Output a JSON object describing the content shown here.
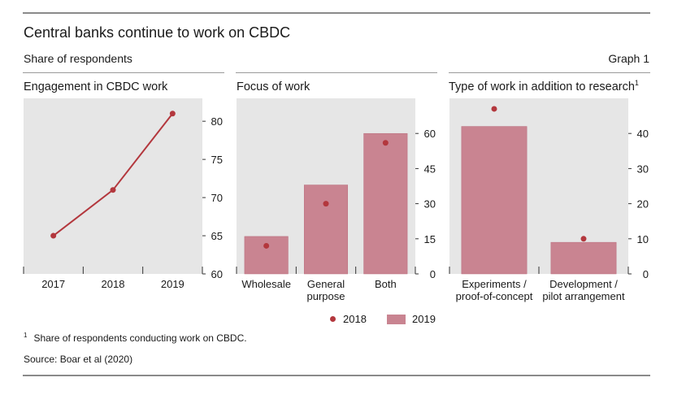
{
  "header": {
    "title": "Central banks continue to work on CBDC",
    "subtitle": "Share of respondents",
    "graph_number": "Graph 1"
  },
  "legend": {
    "items": [
      {
        "label": "2018",
        "marker": "dot",
        "color": "#b3373d"
      },
      {
        "label": "2019",
        "marker": "bar",
        "color": "#c98491"
      }
    ]
  },
  "footnote": {
    "marker": "1",
    "text": "Share of respondents conducting work on CBDC."
  },
  "source": "Source: Boar et al (2020)",
  "colors": {
    "panel_bg": "#e6e6e6",
    "bar_2019": "#c98491",
    "bar_border": "#b96c7c",
    "dot_2018": "#b3373d",
    "line": "#b3373d"
  },
  "chart_data": [
    {
      "type": "line",
      "title": "Engagement in CBDC work",
      "x": [
        "2017",
        "2018",
        "2019"
      ],
      "series": [
        {
          "values": [
            65,
            71,
            81
          ]
        }
      ],
      "ylim": [
        60,
        83
      ],
      "yticks": [
        60,
        65,
        70,
        75,
        80
      ],
      "grid": false
    },
    {
      "type": "bar",
      "title": "Focus of work",
      "categories": [
        "Wholesale",
        "General purpose",
        "Both"
      ],
      "category_lines": [
        [
          "Wholesale"
        ],
        [
          "General",
          "purpose"
        ],
        [
          "Both"
        ]
      ],
      "series": [
        {
          "name": "2018",
          "marker": "dot",
          "values": [
            12,
            30,
            56
          ]
        },
        {
          "name": "2019",
          "marker": "bar",
          "values": [
            16,
            38,
            60
          ]
        }
      ],
      "ylim": [
        0,
        75
      ],
      "yticks": [
        0,
        15,
        30,
        45,
        60
      ],
      "grid": false
    },
    {
      "type": "bar",
      "title": "Type of work in addition to research",
      "title_footnote": "1",
      "categories": [
        "Experiments / proof-of-concept",
        "Development / pilot arrangement"
      ],
      "category_lines": [
        [
          "Experiments /",
          "proof-of-concept"
        ],
        [
          "Development /",
          "pilot arrangement"
        ]
      ],
      "series": [
        {
          "name": "2018",
          "marker": "dot",
          "values": [
            47,
            10
          ]
        },
        {
          "name": "2019",
          "marker": "bar",
          "values": [
            42,
            9
          ]
        }
      ],
      "ylim": [
        0,
        50
      ],
      "yticks": [
        0,
        10,
        20,
        30,
        40
      ],
      "grid": false
    }
  ]
}
